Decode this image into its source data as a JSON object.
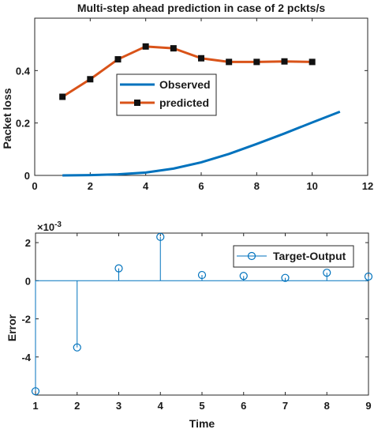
{
  "chart_data": [
    {
      "type": "line",
      "title": "Multi-step ahead prediction in case of 2 pckts/s",
      "xlabel": "",
      "ylabel": "Packet loss",
      "xlim": [
        0,
        12
      ],
      "ylim": [
        0,
        0.6
      ],
      "xticks": [
        "0",
        "2",
        "4",
        "6",
        "8",
        "10",
        "12"
      ],
      "yticks": [
        "0",
        "0.2",
        "0.4"
      ],
      "legend_position": "center",
      "series": [
        {
          "name": "Observed",
          "color": "#0072BD",
          "marker": "none",
          "x": [
            1,
            2,
            3,
            4,
            5,
            6,
            7,
            8,
            9,
            10,
            11
          ],
          "y": [
            0.0,
            0.001,
            0.004,
            0.011,
            0.026,
            0.05,
            0.082,
            0.12,
            0.16,
            0.202,
            0.243
          ]
        },
        {
          "name": "predicted",
          "color": "#D95319",
          "marker": "square",
          "x": [
            1,
            2,
            3,
            4,
            5,
            6,
            7,
            8,
            9,
            10
          ],
          "y": [
            0.3,
            0.367,
            0.443,
            0.492,
            0.485,
            0.447,
            0.433,
            0.433,
            0.435,
            0.433
          ]
        }
      ]
    },
    {
      "type": "stem",
      "title": "",
      "xlabel": "Time",
      "ylabel": "Error",
      "exponent_label": "×10",
      "exponent_power": "-3",
      "xlim": [
        1,
        9
      ],
      "ylim": [
        -6,
        2.5
      ],
      "xticks": [
        "1",
        "2",
        "3",
        "4",
        "5",
        "6",
        "7",
        "8",
        "9"
      ],
      "yticks": [
        "-4",
        "-2",
        "0",
        "2"
      ],
      "legend_position": "top-right",
      "series": [
        {
          "name": "Target-Output",
          "color": "#0072BD",
          "marker": "circle",
          "x": [
            1,
            2,
            3,
            4,
            5,
            6,
            7,
            8,
            9
          ],
          "y": [
            -5.8,
            -3.5,
            0.65,
            2.3,
            0.3,
            0.25,
            0.15,
            0.42,
            0.22
          ]
        }
      ]
    }
  ]
}
